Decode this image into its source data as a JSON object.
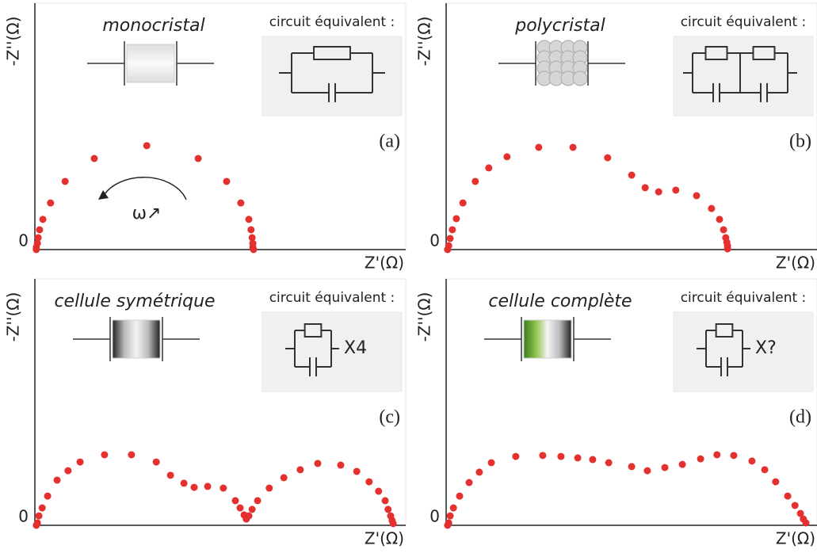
{
  "chart_data": [
    {
      "type": "scatter",
      "title": "monocristal",
      "circuit_label": "circuit équivalent :",
      "panel_label": "(a)",
      "annotation": "ω↗",
      "x_label": "Z'(Ω)",
      "y_label": "-Z''(Ω)",
      "color": "#e53030",
      "xlim": [
        0,
        100
      ],
      "ylim": [
        0,
        100
      ],
      "yticks": [
        0
      ],
      "x": [
        0.4,
        0.4,
        0.7,
        0.9,
        1.3,
        2.2,
        4.3,
        8.3,
        16.3,
        30.7,
        44.8,
        52.6,
        56.5,
        58.7,
        59.3,
        59.6,
        59.8,
        59.8,
        60.0
      ],
      "values": [
        0,
        1,
        2.6,
        4.9,
        8.2,
        12.5,
        19.3,
        28.2,
        37.7,
        43.0,
        37.7,
        28.2,
        19.3,
        12.5,
        8.2,
        4.9,
        2.6,
        1,
        0
      ]
    },
    {
      "type": "scatter",
      "title": "polycristal",
      "circuit_label": "circuit équivalent :",
      "panel_label": "(b)",
      "x_label": "Z'(Ω)",
      "y_label": "-Z''(Ω)",
      "color": "#e53030",
      "xlim": [
        0,
        100
      ],
      "ylim": [
        0,
        100
      ],
      "yticks": [
        0
      ],
      "x": [
        0.4,
        0.7,
        1.1,
        1.7,
        2.8,
        4.6,
        8.0,
        11.7,
        16.7,
        25.4,
        34.8,
        44.3,
        50.9,
        54.6,
        58.3,
        63.0,
        68.7,
        72.8,
        75.0,
        76.1,
        76.7,
        77.0,
        77.2,
        77.2
      ],
      "values": [
        0,
        1.6,
        4.6,
        8.2,
        12.8,
        19.3,
        28.2,
        33.8,
        38.4,
        42.3,
        42.3,
        38.0,
        30.8,
        25.6,
        23.9,
        24.6,
        22.3,
        17.0,
        12.5,
        8.2,
        4.9,
        3.0,
        1.6,
        0.3
      ]
    },
    {
      "type": "scatter",
      "title": "cellule symétrique",
      "circuit_label": "circuit équivalent :",
      "panel_label": "(c)",
      "multiplier": "X4",
      "x_label": "Z'(Ω)",
      "y_label": "-Z''(Ω)",
      "color": "#e53030",
      "xlim": [
        0,
        100
      ],
      "ylim": [
        0,
        100
      ],
      "yticks": [
        0
      ],
      "x": [
        0.4,
        0.7,
        1.1,
        2.0,
        3.5,
        6.1,
        9.1,
        12.4,
        19.1,
        26.5,
        33.3,
        37.2,
        40.9,
        43.7,
        47.4,
        51.7,
        55.0,
        56.3,
        57.4,
        58.0,
        58.7,
        59.6,
        61.1,
        64.3,
        68.3,
        72.8,
        77.6,
        83.9,
        88.3,
        91.7,
        94.3,
        96.1,
        96.9,
        97.6,
        98.0,
        98.3
      ],
      "values": [
        0,
        1,
        3.9,
        7.2,
        12.1,
        18.7,
        22.6,
        26.2,
        29.2,
        29.2,
        26.2,
        20.7,
        17.4,
        15.7,
        16.1,
        15.4,
        10.2,
        7.2,
        4.3,
        2.6,
        3.9,
        6.6,
        10.2,
        15.4,
        19.7,
        23.0,
        25.6,
        24.9,
        22.3,
        18.0,
        14.1,
        10.2,
        6.6,
        3.9,
        2.0,
        0.7
      ]
    },
    {
      "type": "scatter",
      "title": "cellule complète",
      "circuit_label": "circuit équivalent :",
      "panel_label": "(d)",
      "multiplier": "X?",
      "x_label": "Z'(Ω)",
      "y_label": "-Z''(Ω)",
      "color": "#e53030",
      "xlim": [
        0,
        100
      ],
      "ylim": [
        0,
        100
      ],
      "yticks": [
        0
      ],
      "x": [
        0.4,
        0.7,
        1.1,
        2.0,
        3.7,
        6.3,
        9.1,
        12.4,
        19.1,
        26.5,
        31.5,
        36.1,
        40.2,
        44.6,
        50.9,
        55.2,
        60.0,
        64.8,
        69.8,
        74.3,
        78.9,
        83.9,
        87.4,
        90.4,
        93.7,
        95.7,
        97.2,
        98.0,
        98.7
      ],
      "values": [
        0,
        1,
        3.9,
        7.2,
        12.1,
        17.7,
        22.0,
        25.9,
        28.5,
        28.9,
        28.5,
        27.9,
        27.2,
        25.9,
        24.3,
        22.6,
        23.9,
        25.2,
        27.5,
        29.2,
        28.9,
        26.6,
        23.0,
        18.0,
        12.1,
        8.2,
        4.9,
        2.6,
        1.0
      ]
    }
  ]
}
